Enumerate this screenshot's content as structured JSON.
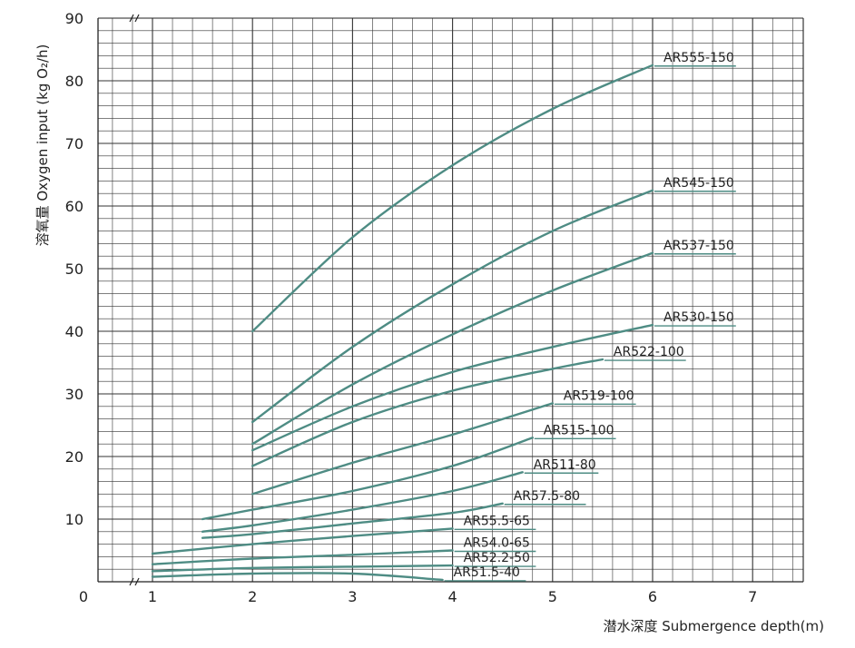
{
  "chart_data": {
    "type": "line",
    "xlabel": "潜水深度 Submergence depth(m)",
    "ylabel": "溶氧量 Oxygen input (kg O₂/h)",
    "xlim": [
      0,
      7.5
    ],
    "ylim": [
      0,
      90
    ],
    "x_ticks": [
      "0",
      "1",
      "2",
      "3",
      "4",
      "5",
      "6",
      "7"
    ],
    "y_ticks": [
      "10",
      "20",
      "30",
      "40",
      "50",
      "60",
      "70",
      "80",
      "90"
    ],
    "grid": true,
    "axis_break": true,
    "line_color": "#4e8c84",
    "series": [
      {
        "name": "AR555-150",
        "x": [
          2,
          3,
          4,
          5,
          6
        ],
        "y": [
          40,
          55,
          66.5,
          75.5,
          82.5
        ]
      },
      {
        "name": "AR545-150",
        "x": [
          2,
          3,
          4,
          5,
          6
        ],
        "y": [
          25.5,
          37.5,
          47.5,
          56,
          62.5
        ]
      },
      {
        "name": "AR537-150",
        "x": [
          2,
          3,
          4,
          5,
          6
        ],
        "y": [
          22,
          31.5,
          39.5,
          46.5,
          52.5
        ]
      },
      {
        "name": "AR530-150",
        "x": [
          2,
          3,
          4,
          5,
          6
        ],
        "y": [
          21,
          28,
          33.5,
          37.5,
          41
        ]
      },
      {
        "name": "AR522-100",
        "x": [
          2,
          3,
          4,
          5,
          5.5
        ],
        "y": [
          18.5,
          25.5,
          30.5,
          34,
          35.5
        ]
      },
      {
        "name": "AR519-100",
        "x": [
          2,
          3,
          4,
          5
        ],
        "y": [
          14,
          19,
          23.5,
          28.5
        ]
      },
      {
        "name": "AR515-100",
        "x": [
          1.5,
          2,
          3,
          4,
          4.8
        ],
        "y": [
          10,
          11.5,
          14.5,
          18.5,
          23
        ]
      },
      {
        "name": "AR511-80",
        "x": [
          1.5,
          2,
          3,
          4,
          4.7
        ],
        "y": [
          8,
          9,
          11.5,
          14.5,
          17.5
        ]
      },
      {
        "name": "AR57.5-80",
        "x": [
          1.5,
          2,
          3,
          4,
          4.5
        ],
        "y": [
          7,
          7.6,
          9.3,
          11,
          12.5
        ]
      },
      {
        "name": "AR55.5-65",
        "x": [
          1,
          2,
          3,
          4
        ],
        "y": [
          4.5,
          6,
          7.3,
          8.5
        ]
      },
      {
        "name": "AR54.0-65",
        "x": [
          1,
          2,
          3,
          4
        ],
        "y": [
          2.8,
          3.7,
          4.3,
          5
        ]
      },
      {
        "name": "AR52.2-50",
        "x": [
          1,
          2,
          3,
          4
        ],
        "y": [
          1.7,
          2.2,
          2.4,
          2.6
        ]
      },
      {
        "name": "AR51.5-40",
        "x": [
          1,
          2,
          3,
          4
        ],
        "y": [
          0.8,
          1.3,
          1.3,
          0
        ]
      }
    ]
  }
}
